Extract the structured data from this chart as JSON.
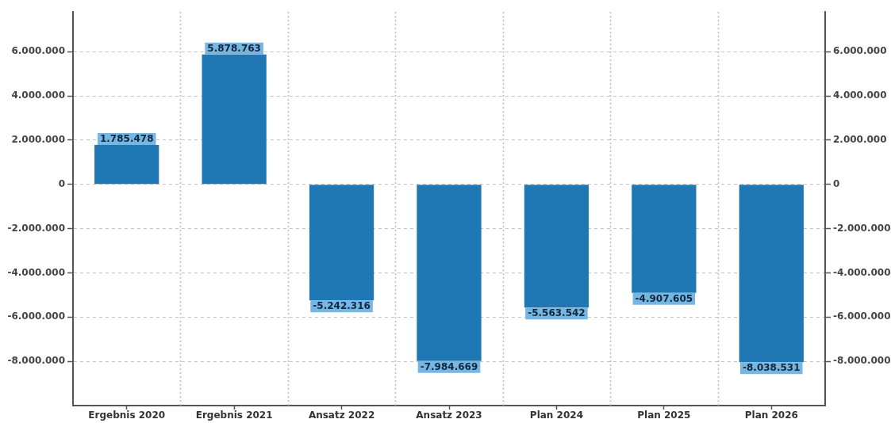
{
  "chart_data": {
    "type": "bar",
    "categories": [
      "Ergebnis 2020",
      "Ergebnis 2021",
      "Ansatz 2022",
      "Ansatz 2023",
      "Plan 2024",
      "Plan 2025",
      "Plan 2026"
    ],
    "values": [
      1785478,
      5878763,
      -5242316,
      -7984669,
      -5563542,
      -4907605,
      -8038531
    ],
    "value_labels": [
      "1.785.478",
      "5.878.763",
      "-5.242.316",
      "-7.984.669",
      "-5.563.542",
      "-4.907.605",
      "-8.038.531"
    ],
    "color": "#1f77b4",
    "ylim": [
      -10000000,
      7800000
    ],
    "yticks": [
      {
        "value": -8000000,
        "label": "-8.000.000"
      },
      {
        "value": -6000000,
        "label": "-6.000.000"
      },
      {
        "value": -4000000,
        "label": "-4.000.000"
      },
      {
        "value": -2000000,
        "label": "-2.000.000"
      },
      0,
      {
        "value": 2000000,
        "label": "2.000.000"
      },
      {
        "value": 4000000,
        "label": "4.000.000"
      },
      {
        "value": 6000000,
        "label": "6.000.000"
      }
    ],
    "y2lim": [
      -10000000,
      7800000
    ],
    "y2ticks": [
      {
        "value": -8000000,
        "label": "-8.000.000"
      },
      {
        "value": -6000000,
        "label": "-6.000.000"
      },
      {
        "value": -4000000,
        "label": "-4.000.000"
      },
      {
        "value": -2000000,
        "label": "-2.000.000"
      },
      0,
      {
        "value": 2000000,
        "label": "2.000.000"
      },
      {
        "value": 4000000,
        "label": "4.000.000"
      },
      {
        "value": 6000000,
        "label": "6.000.000"
      }
    ],
    "grid": true
  }
}
